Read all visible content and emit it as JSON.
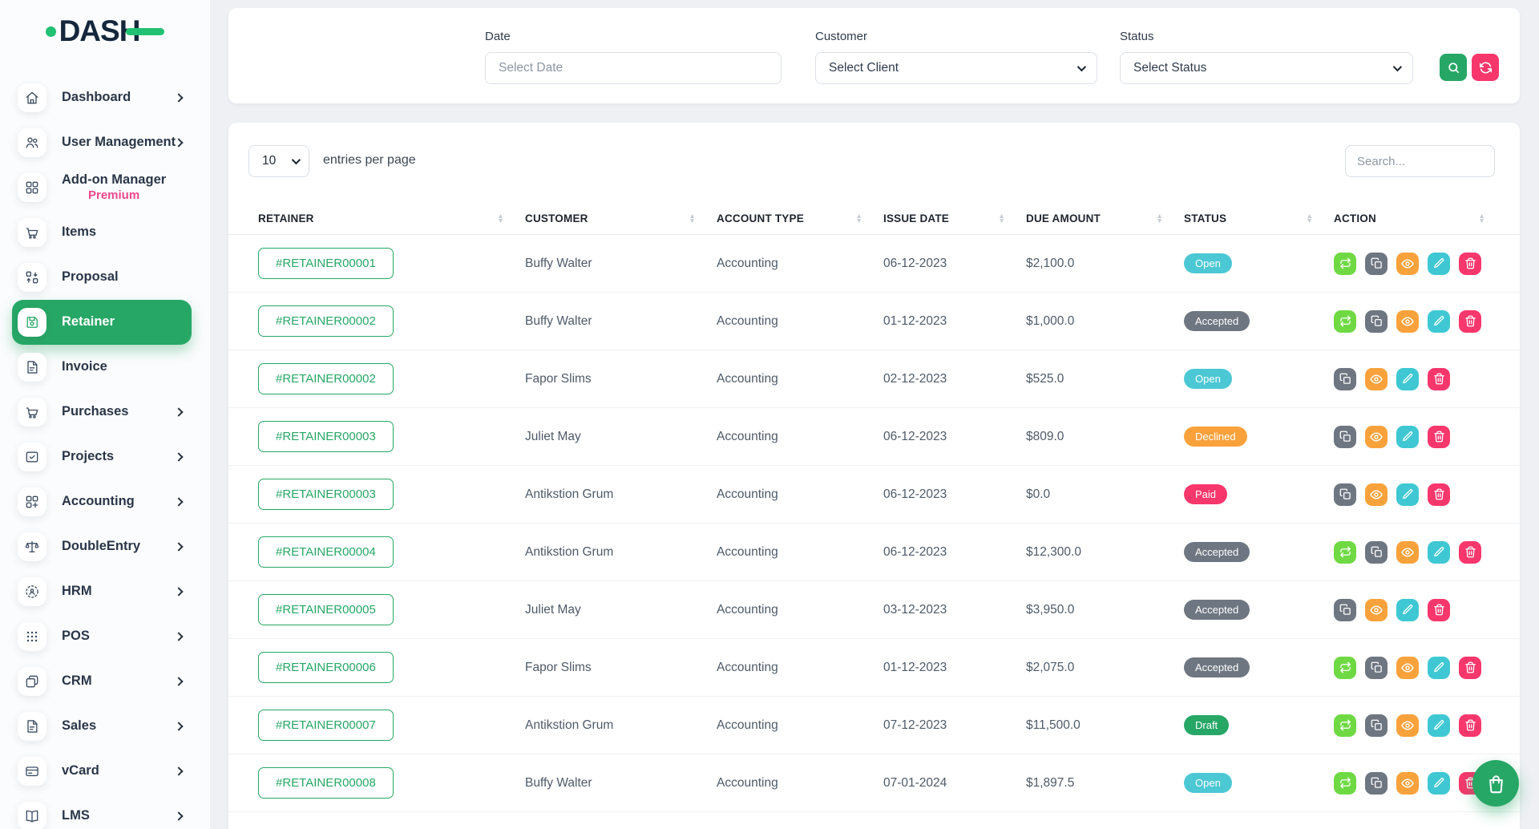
{
  "brand": {
    "name": "DASH"
  },
  "sidebar": {
    "items": [
      {
        "label": "Dashboard",
        "icon": "home",
        "chevron": true,
        "active": false
      },
      {
        "label": "User Management",
        "icon": "users",
        "chevron": true,
        "active": false
      },
      {
        "label": "Add-on Manager",
        "sublabel": "Premium",
        "icon": "grid",
        "chevron": false,
        "active": false
      },
      {
        "label": "Items",
        "icon": "cart",
        "chevron": false,
        "active": false
      },
      {
        "label": "Proposal",
        "icon": "swap-grid",
        "chevron": false,
        "active": false
      },
      {
        "label": "Retainer",
        "icon": "save",
        "chevron": false,
        "active": true
      },
      {
        "label": "Invoice",
        "icon": "document",
        "chevron": false,
        "active": false
      },
      {
        "label": "Purchases",
        "icon": "cart",
        "chevron": true,
        "active": false
      },
      {
        "label": "Projects",
        "icon": "check-square",
        "chevron": true,
        "active": false
      },
      {
        "label": "Accounting",
        "icon": "grid-plus",
        "chevron": true,
        "active": false
      },
      {
        "label": "DoubleEntry",
        "icon": "scales",
        "chevron": true,
        "active": false
      },
      {
        "label": "HRM",
        "icon": "person-dots",
        "chevron": true,
        "active": false
      },
      {
        "label": "POS",
        "icon": "dots-grid",
        "chevron": true,
        "active": false
      },
      {
        "label": "CRM",
        "icon": "squares",
        "chevron": true,
        "active": false
      },
      {
        "label": "Sales",
        "icon": "document",
        "chevron": true,
        "active": false
      },
      {
        "label": "vCard",
        "icon": "card",
        "chevron": true,
        "active": false
      },
      {
        "label": "LMS",
        "icon": "book",
        "chevron": true,
        "active": false
      }
    ]
  },
  "filters": {
    "date": {
      "label": "Date",
      "placeholder": "Select Date"
    },
    "customer": {
      "label": "Customer",
      "value": "Select Client"
    },
    "status": {
      "label": "Status",
      "value": "Select Status"
    }
  },
  "toolbar": {
    "entries_value": "10",
    "entries_label": "entries per page",
    "search_placeholder": "Search..."
  },
  "table": {
    "headers": [
      "RETAINER",
      "CUSTOMER",
      "ACCOUNT TYPE",
      "ISSUE DATE",
      "DUE AMOUNT",
      "STATUS",
      "ACTION"
    ],
    "rows": [
      {
        "retainer": "#RETAINER00001",
        "customer": "Buffy Walter",
        "account_type": "Accounting",
        "issue_date": "06-12-2023",
        "due_amount": "$2,100.0",
        "status": "Open",
        "actions": [
          "convert",
          "copy",
          "view",
          "edit",
          "delete"
        ]
      },
      {
        "retainer": "#RETAINER00002",
        "customer": "Buffy Walter",
        "account_type": "Accounting",
        "issue_date": "01-12-2023",
        "due_amount": "$1,000.0",
        "status": "Accepted",
        "actions": [
          "convert",
          "copy",
          "view",
          "edit",
          "delete"
        ]
      },
      {
        "retainer": "#RETAINER00002",
        "customer": "Fapor Slims",
        "account_type": "Accounting",
        "issue_date": "02-12-2023",
        "due_amount": "$525.0",
        "status": "Open",
        "actions": [
          "copy",
          "view",
          "edit",
          "delete"
        ]
      },
      {
        "retainer": "#RETAINER00003",
        "customer": "Juliet May",
        "account_type": "Accounting",
        "issue_date": "06-12-2023",
        "due_amount": "$809.0",
        "status": "Declined",
        "actions": [
          "copy",
          "view",
          "edit",
          "delete"
        ]
      },
      {
        "retainer": "#RETAINER00003",
        "customer": "Antikstion Grum",
        "account_type": "Accounting",
        "issue_date": "06-12-2023",
        "due_amount": "$0.0",
        "status": "Paid",
        "actions": [
          "copy",
          "view",
          "edit",
          "delete"
        ]
      },
      {
        "retainer": "#RETAINER00004",
        "customer": "Antikstion Grum",
        "account_type": "Accounting",
        "issue_date": "06-12-2023",
        "due_amount": "$12,300.0",
        "status": "Accepted",
        "actions": [
          "convert",
          "copy",
          "view",
          "edit",
          "delete"
        ]
      },
      {
        "retainer": "#RETAINER00005",
        "customer": "Juliet May",
        "account_type": "Accounting",
        "issue_date": "03-12-2023",
        "due_amount": "$3,950.0",
        "status": "Accepted",
        "actions": [
          "copy",
          "view",
          "edit",
          "delete"
        ]
      },
      {
        "retainer": "#RETAINER00006",
        "customer": "Fapor Slims",
        "account_type": "Accounting",
        "issue_date": "01-12-2023",
        "due_amount": "$2,075.0",
        "status": "Accepted",
        "actions": [
          "convert",
          "copy",
          "view",
          "edit",
          "delete"
        ]
      },
      {
        "retainer": "#RETAINER00007",
        "customer": "Antikstion Grum",
        "account_type": "Accounting",
        "issue_date": "07-12-2023",
        "due_amount": "$11,500.0",
        "status": "Draft",
        "actions": [
          "convert",
          "copy",
          "view",
          "edit",
          "delete"
        ]
      },
      {
        "retainer": "#RETAINER00008",
        "customer": "Buffy Walter",
        "account_type": "Accounting",
        "issue_date": "07-01-2024",
        "due_amount": "$1,897.5",
        "status": "Open",
        "actions": [
          "convert",
          "copy",
          "view",
          "edit",
          "delete"
        ]
      }
    ]
  },
  "colors": {
    "primary": "#27a766",
    "logo_green": "#22c173",
    "premium_pink": "#f1478f",
    "btn_search": "#27a766",
    "btn_refresh": "#f8376d",
    "action_convert": "#6fd944",
    "action_copy": "#6e7681",
    "action_view": "#f9a23c",
    "action_edit": "#3fc8d3",
    "action_delete": "#f8376d",
    "badge_open": "#4cc8d4",
    "badge_accepted": "#6e7681",
    "badge_declined": "#f9a23c",
    "badge_paid": "#f8376d",
    "badge_draft": "#27a766"
  }
}
